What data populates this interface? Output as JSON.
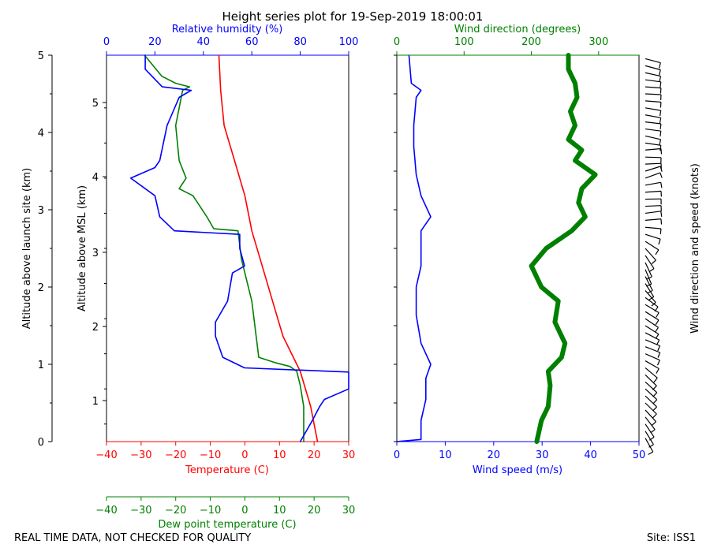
{
  "title": "Height series plot for 19-Sep-2019 18:00:01",
  "footer": {
    "left": "REAL TIME DATA, NOT CHECKED FOR QUALITY",
    "right": "Site: ISS1"
  },
  "colors": {
    "temp": "#ff0000",
    "dew": "#008000",
    "rh": "#0000ff",
    "wspd": "#0000ff",
    "wdir": "#008000",
    "barb": "#000000"
  },
  "chart_data": [
    {
      "type": "line",
      "name": "thermo-panel",
      "y_label_outer": "Altitude above launch site (km)",
      "y_label_inner": "Altitude above MSL (km)",
      "y_outer_range": [
        0,
        5
      ],
      "y_outer_ticks": [
        "0",
        "1",
        "2",
        "3",
        "4",
        "5"
      ],
      "y_inner_ticks": [
        "1",
        "2",
        "3",
        "4",
        "5"
      ],
      "temp_axis": {
        "label": "Temperature (C)",
        "range": [
          -40,
          30
        ],
        "ticks": [
          "−40",
          "−30",
          "−20",
          "−10",
          "0",
          "10",
          "20",
          "30"
        ]
      },
      "dew_axis": {
        "label": "Dew point temperature (C)",
        "range": [
          -40,
          30
        ],
        "ticks": [
          "−40",
          "−30",
          "−20",
          "−10",
          "0",
          "10",
          "20",
          "30"
        ]
      },
      "rh_axis": {
        "label": "Relative humidity (%)",
        "range": [
          0,
          100
        ],
        "ticks": [
          "0",
          "20",
          "40",
          "60",
          "80",
          "100"
        ]
      },
      "series": [
        {
          "name": "Temperature",
          "axis": "temp",
          "alt": [
            0,
            0.5,
            1,
            1.5,
            2,
            2.5,
            3,
            3.5,
            4,
            4.5,
            5,
            5.5
          ],
          "values": [
            21,
            19,
            16,
            11,
            8,
            5,
            2,
            0,
            -3,
            -6,
            -7,
            -7.5
          ]
        },
        {
          "name": "Dew point",
          "axis": "dew",
          "alt": [
            0,
            0.5,
            0.8,
            1,
            1.07,
            1.12,
            1.2,
            1.6,
            2,
            2.4,
            2.6,
            3,
            3.03,
            3.2,
            3.5,
            3.6,
            3.75,
            4,
            4.5,
            5,
            5.05,
            5.1,
            5.2,
            5.5
          ],
          "values": [
            17,
            17,
            16,
            15,
            13,
            9,
            4,
            3,
            2,
            0,
            -1,
            -2,
            -9,
            -11,
            -15,
            -19,
            -17,
            -19,
            -20,
            -18,
            -16,
            -20,
            -24,
            -29
          ]
        },
        {
          "name": "Relative humidity",
          "axis": "rh",
          "alt": [
            0,
            0.3,
            0.5,
            0.6,
            0.75,
            0.9,
            0.99,
            1.05,
            1.2,
            1.5,
            1.7,
            2,
            2.4,
            2.5,
            2.75,
            2.95,
            3,
            3.2,
            3.5,
            3.75,
            3.9,
            4,
            4.5,
            4.9,
            5,
            5.05,
            5.3,
            5.5
          ],
          "values": [
            80,
            85,
            88,
            90,
            100,
            100,
            100,
            57,
            48,
            45,
            45,
            50,
            52,
            57,
            55,
            55,
            28,
            22,
            20,
            10,
            20,
            22,
            25,
            30,
            35,
            23,
            16,
            16
          ]
        }
      ]
    },
    {
      "type": "line",
      "name": "wind-panel",
      "wspd_axis": {
        "label": "Wind speed (m/s)",
        "range": [
          0,
          50
        ],
        "ticks": [
          "0",
          "10",
          "20",
          "30",
          "40",
          "50"
        ]
      },
      "wdir_axis": {
        "label": "Wind direction (degrees)",
        "range": [
          0,
          360
        ],
        "ticks": [
          "0",
          "100",
          "200",
          "300"
        ]
      },
      "barbs_label": "Wind direction and speed (knots)",
      "series": [
        {
          "name": "Wind speed",
          "axis": "wspd",
          "alt": [
            0,
            0.03,
            0.1,
            0.3,
            0.6,
            0.9,
            1.1,
            1.4,
            1.8,
            2.2,
            2.5,
            3,
            3.2,
            3.5,
            3.8,
            4.2,
            4.5,
            4.9,
            5,
            5.1,
            5.5
          ],
          "values": [
            0,
            5,
            5,
            5,
            6,
            6,
            7,
            5,
            4,
            4,
            5,
            5,
            7,
            5,
            4,
            3.5,
            3.5,
            4,
            5,
            3,
            2.5
          ]
        },
        {
          "name": "Wind direction",
          "axis": "wdir",
          "alt": [
            0,
            0.3,
            0.5,
            0.8,
            1,
            1.2,
            1.4,
            1.7,
            2,
            2.2,
            2.5,
            2.75,
            3,
            3.2,
            3.4,
            3.6,
            3.8,
            4,
            4.15,
            4.3,
            4.5,
            4.7,
            4.9,
            5.1,
            5.3,
            5.5
          ],
          "values": [
            208,
            215,
            225,
            228,
            225,
            245,
            250,
            235,
            240,
            215,
            200,
            222,
            260,
            280,
            270,
            275,
            295,
            265,
            275,
            255,
            265,
            258,
            268,
            265,
            255,
            255
          ]
        }
      ]
    }
  ]
}
